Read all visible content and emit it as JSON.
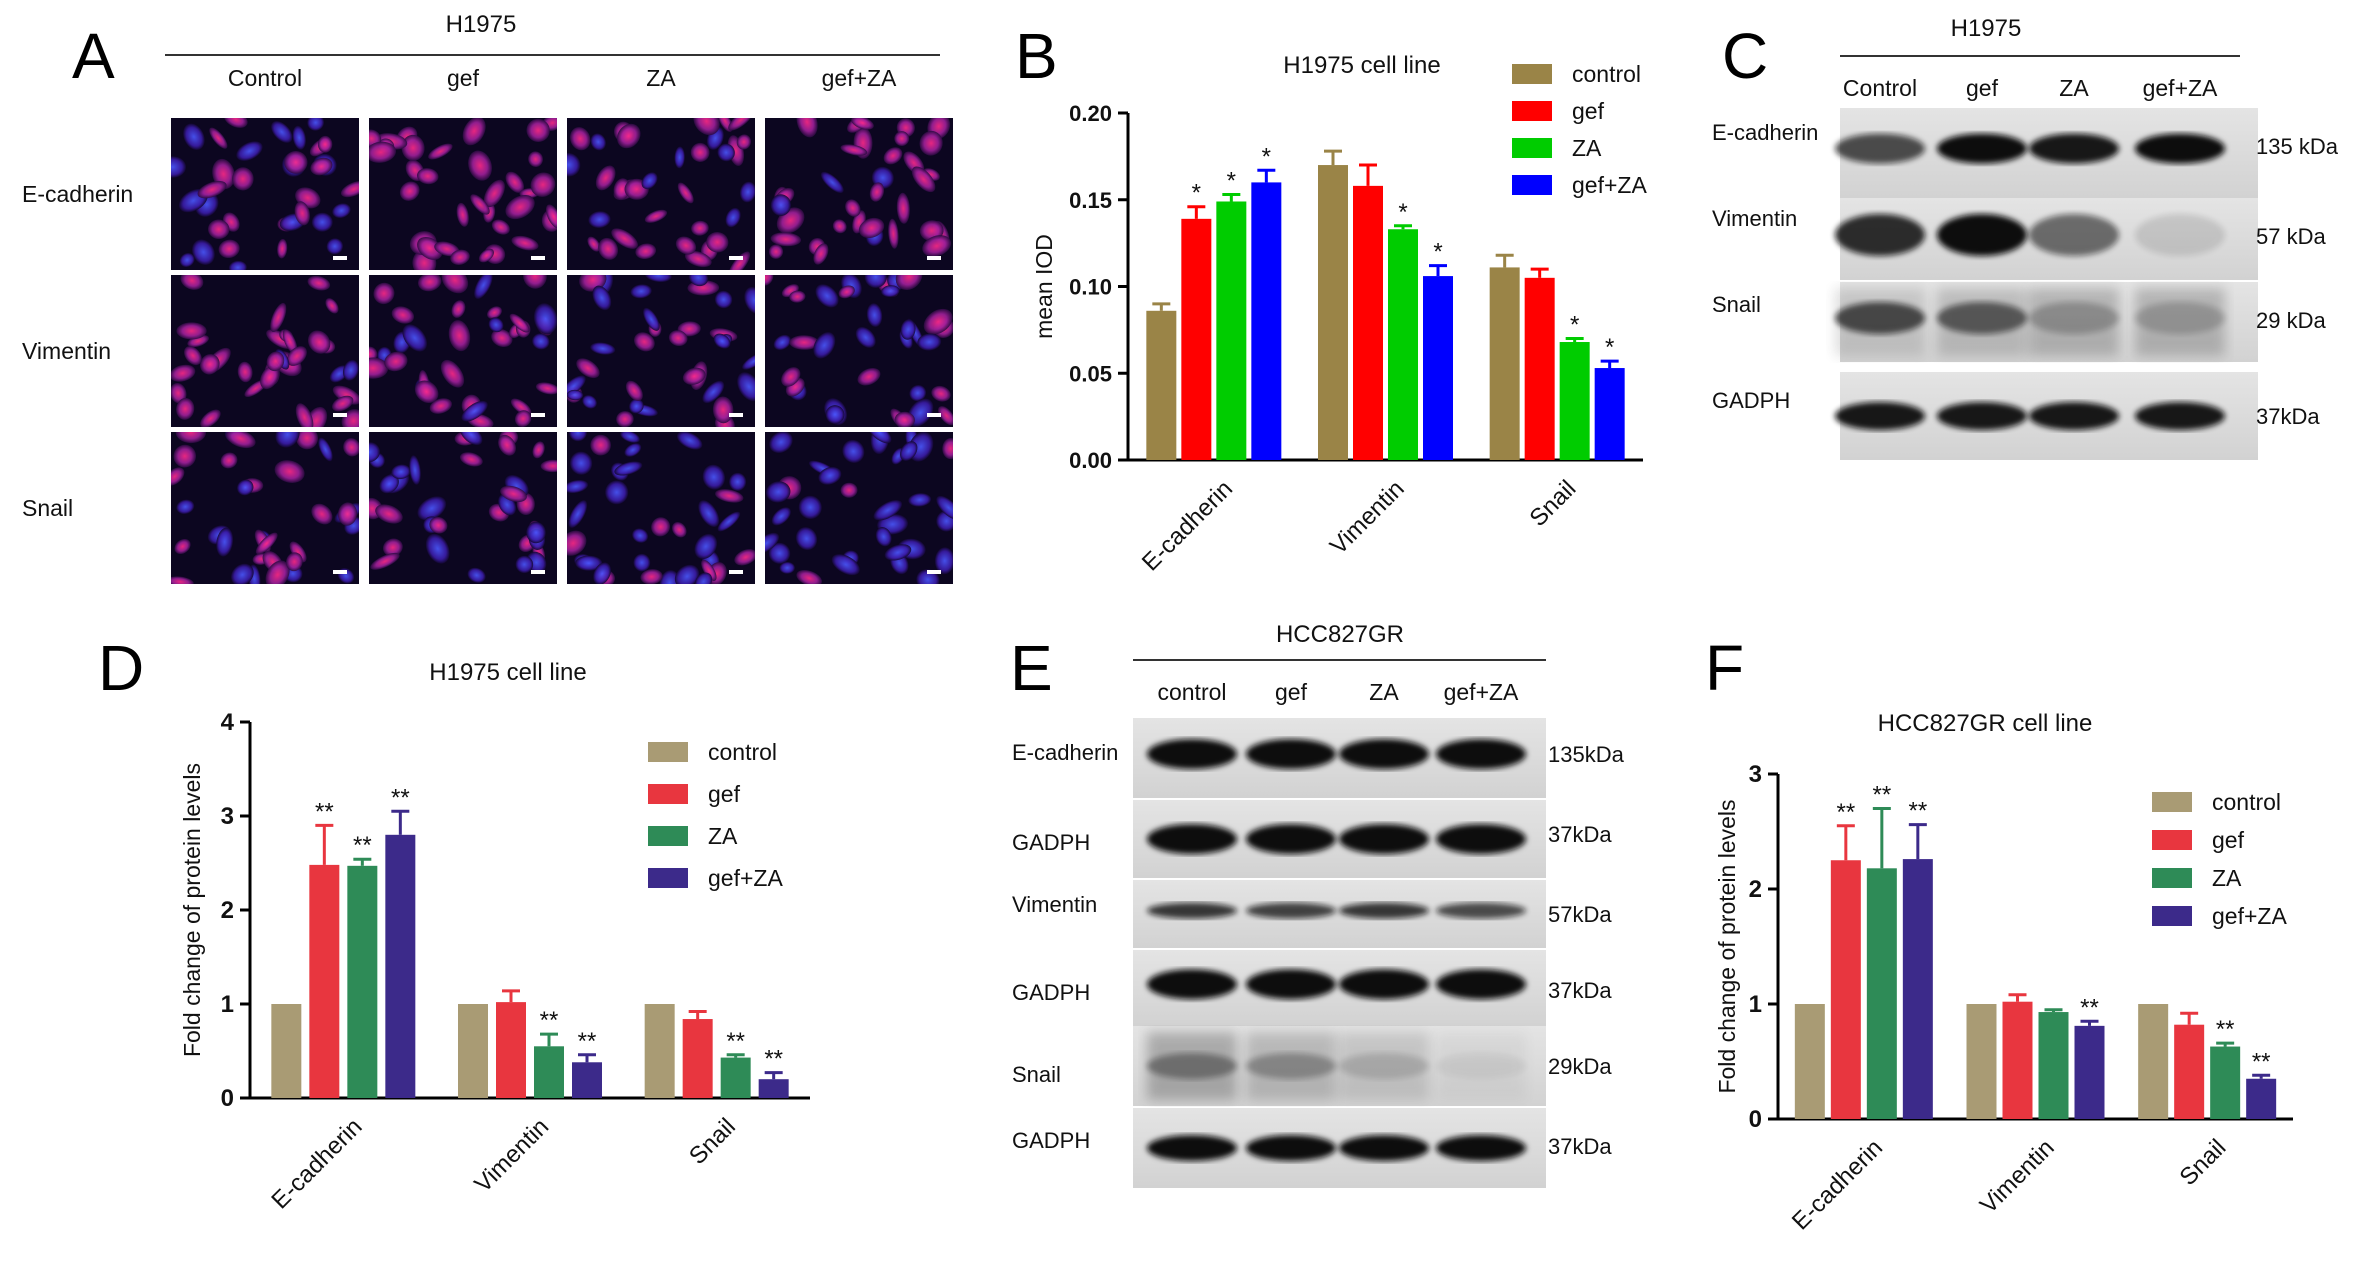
{
  "panel_labels": [
    "A",
    "B",
    "C",
    "D",
    "E",
    "F"
  ],
  "panel_a": {
    "cell_line": "H1975",
    "columns": [
      "Control",
      "gef",
      "ZA",
      "gef+ZA"
    ],
    "rows": [
      "E-cadherin",
      "Vimentin",
      "Snail"
    ]
  },
  "panel_c": {
    "cell_line": "H1975",
    "lanes": [
      "Control",
      "gef",
      "ZA",
      "gef+ZA"
    ],
    "bands": [
      {
        "name": "E-cadherin",
        "size": "135 kDa"
      },
      {
        "name": "Vimentin",
        "size": "57 kDa"
      },
      {
        "name": "Snail",
        "size": "29 kDa"
      },
      {
        "name": "GADPH",
        "size": "37kDa"
      }
    ]
  },
  "panel_e": {
    "cell_line": "HCC827GR",
    "lanes": [
      "control",
      "gef",
      "ZA",
      "gef+ZA"
    ],
    "bands": [
      {
        "name": "E-cadherin",
        "size": "135kDa"
      },
      {
        "name": "GADPH",
        "size": "37kDa"
      },
      {
        "name": "Vimentin",
        "size": "57kDa"
      },
      {
        "name": "GADPH",
        "size": "37kDa"
      },
      {
        "name": "Snail",
        "size": "29kDa"
      },
      {
        "name": "GADPH",
        "size": "37kDa"
      }
    ]
  },
  "chart_data": [
    {
      "panel": "B",
      "type": "bar",
      "title": "H1975 cell line",
      "xlabel": "",
      "ylabel": "mean IOD",
      "ylim": [
        0,
        0.2
      ],
      "yticks": [
        "0.00",
        "0.05",
        "0.10",
        "0.15",
        "0.20"
      ],
      "categories": [
        "E-cadherin",
        "Vimentin",
        "Snail"
      ],
      "legend_position": "top-right",
      "series": [
        {
          "name": "control",
          "color": "#9a8447",
          "values": [
            0.086,
            0.17,
            0.111
          ],
          "errors": [
            0.004,
            0.008,
            0.007
          ],
          "marks": [
            "",
            "",
            ""
          ]
        },
        {
          "name": "gef",
          "color": "#ff0000",
          "values": [
            0.139,
            0.158,
            0.105
          ],
          "errors": [
            0.007,
            0.012,
            0.005
          ],
          "marks": [
            "*",
            "",
            ""
          ]
        },
        {
          "name": "ZA",
          "color": "#00cc00",
          "values": [
            0.149,
            0.133,
            0.068
          ],
          "errors": [
            0.004,
            0.002,
            0.002
          ],
          "marks": [
            "*",
            "*",
            "*"
          ]
        },
        {
          "name": "gef+ZA",
          "color": "#0000ff",
          "values": [
            0.16,
            0.106,
            0.053
          ],
          "errors": [
            0.007,
            0.006,
            0.004
          ],
          "marks": [
            "*",
            "*",
            "*"
          ]
        }
      ]
    },
    {
      "panel": "D",
      "type": "bar",
      "title": "H1975 cell line",
      "xlabel": "",
      "ylabel": "Fold change of protein levels",
      "ylim": [
        0,
        4
      ],
      "yticks": [
        "0",
        "1",
        "2",
        "3",
        "4"
      ],
      "categories": [
        "E-cadherin",
        "Vimentin",
        "Snail"
      ],
      "legend_position": "top-right",
      "series": [
        {
          "name": "control",
          "color": "#a99b74",
          "values": [
            1.0,
            1.0,
            1.0
          ],
          "errors": [
            0,
            0,
            0
          ],
          "marks": [
            "",
            "",
            ""
          ]
        },
        {
          "name": "gef",
          "color": "#e8363f",
          "values": [
            2.48,
            1.02,
            0.84
          ],
          "errors": [
            0.42,
            0.12,
            0.08
          ],
          "marks": [
            "**",
            "",
            ""
          ]
        },
        {
          "name": "ZA",
          "color": "#2e8b57",
          "values": [
            2.47,
            0.55,
            0.43
          ],
          "errors": [
            0.07,
            0.13,
            0.03
          ],
          "marks": [
            "**",
            "**",
            "**"
          ]
        },
        {
          "name": "gef+ZA",
          "color": "#3c2a8a",
          "values": [
            2.8,
            0.38,
            0.2
          ],
          "errors": [
            0.25,
            0.08,
            0.07
          ],
          "marks": [
            "**",
            "**",
            "**"
          ]
        }
      ]
    },
    {
      "panel": "F",
      "type": "bar",
      "title": "HCC827GR cell line",
      "xlabel": "",
      "ylabel": "Fold change of protein levels",
      "ylim": [
        0,
        3
      ],
      "yticks": [
        "0",
        "1",
        "2",
        "3"
      ],
      "categories": [
        "E-cadherin",
        "Vimentin",
        "Snail"
      ],
      "legend_position": "top-right",
      "series": [
        {
          "name": "control",
          "color": "#a99b74",
          "values": [
            1.0,
            1.0,
            1.0
          ],
          "errors": [
            0,
            0,
            0
          ],
          "marks": [
            "",
            "",
            ""
          ]
        },
        {
          "name": "gef",
          "color": "#e8363f",
          "values": [
            2.25,
            1.02,
            0.82
          ],
          "errors": [
            0.3,
            0.06,
            0.1
          ],
          "marks": [
            "**",
            "",
            ""
          ]
        },
        {
          "name": "ZA",
          "color": "#2e8b57",
          "values": [
            2.18,
            0.93,
            0.63
          ],
          "errors": [
            0.52,
            0.02,
            0.03
          ],
          "marks": [
            "**",
            "",
            "**"
          ]
        },
        {
          "name": "gef+ZA",
          "color": "#3c2a8a",
          "values": [
            2.26,
            0.81,
            0.35
          ],
          "errors": [
            0.3,
            0.04,
            0.03
          ],
          "marks": [
            "**",
            "**",
            "**"
          ]
        }
      ]
    }
  ]
}
